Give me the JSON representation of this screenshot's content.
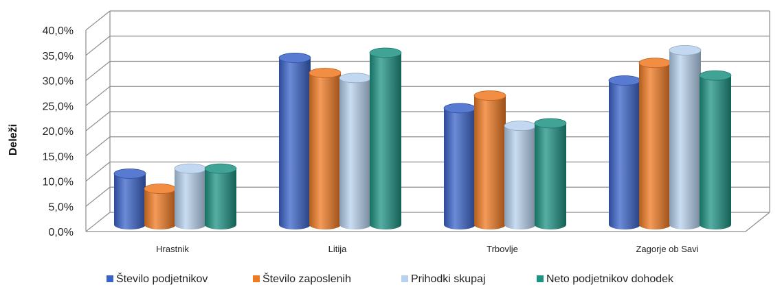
{
  "chart_data": {
    "type": "bar",
    "ylabel": "Deleži",
    "ylim": [
      0,
      40
    ],
    "y_ticks": [
      "0,0%",
      "5,0%",
      "10,0%",
      "15,0%",
      "20,0%",
      "25,0%",
      "30,0%",
      "35,0%",
      "40,0%"
    ],
    "categories": [
      "Hrastnik",
      "Litija",
      "Trbovlje",
      "Zagorje ob Savi"
    ],
    "series": [
      {
        "name": "Število podjetnikov",
        "values": [
          11.5,
          34.5,
          24.5,
          30.0
        ],
        "color": "#3a63c9"
      },
      {
        "name": "Število zaposlenih",
        "values": [
          8.5,
          31.5,
          27.0,
          33.5
        ],
        "color": "#f07a22"
      },
      {
        "name": "Prihodki skupaj",
        "values": [
          12.5,
          30.5,
          21.0,
          36.0
        ],
        "color": "#b7d1ee"
      },
      {
        "name": "Neto podjetnikov dohodek",
        "values": [
          12.5,
          35.5,
          21.5,
          31.0
        ],
        "color": "#1e9384"
      }
    ],
    "grid": true,
    "legend_position": "bottom",
    "style": "3d-cylinder"
  }
}
